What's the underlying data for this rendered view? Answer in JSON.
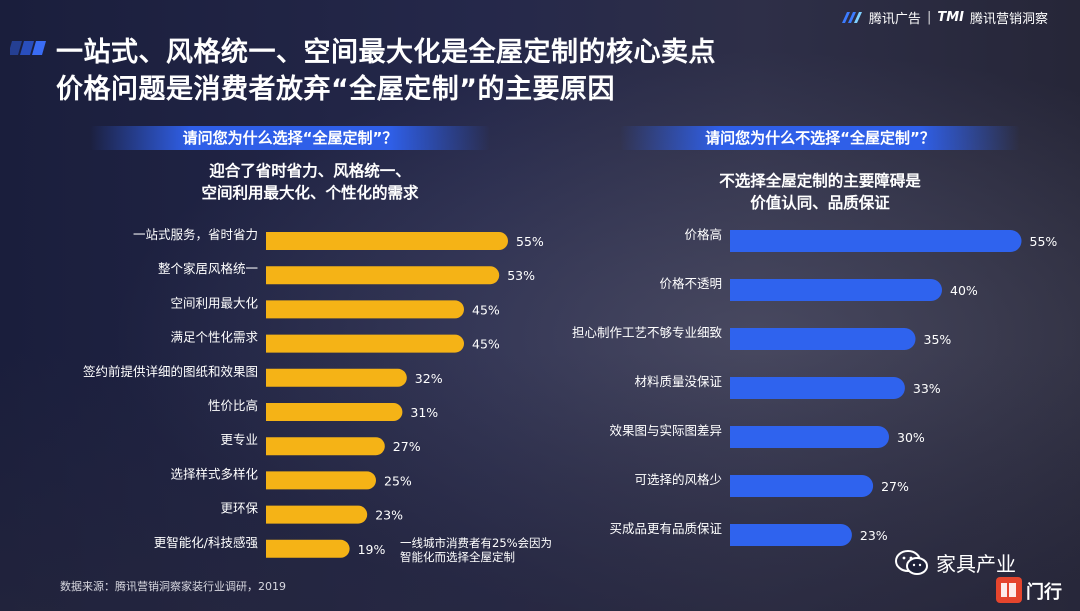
{
  "header": {
    "brand_left": "腾讯广告",
    "brand_sep": "|",
    "brand_tmi": "TMI",
    "brand_right": "腾讯营销洞察"
  },
  "title_line1": "一站式、风格统一、空间最大化是全屋定制的核心卖点",
  "title_line2": "价格问题是消费者放弃“全屋定制”的主要原因",
  "left_question": "请问您为什么选择“全屋定制”？",
  "left_sub_line1": "迎合了省时省力、风格统一、",
  "left_sub_line2": "空间利用最大化、个性化的需求",
  "right_question": "请问您为什么不选择“全屋定制”？",
  "right_sub_line1": "不选择全屋定制的主要障碍是",
  "right_sub_line2": "价值认同、品质保证",
  "note_line1": "一线城市消费者有25%会因为",
  "note_line2": "智能化而选择全屋定制",
  "source": "数据来源：腾讯营销洞察家装行业调研，2019",
  "watermark_text": "家具产业",
  "stamp_text": "门行",
  "colors": {
    "left_bar": "#f5b316",
    "right_bar": "#2f63ee",
    "background": "#1c2038"
  },
  "chart_data": [
    {
      "type": "bar",
      "orientation": "horizontal",
      "categories": [
        "一站式服务，省时省力",
        "整个家居风格统一",
        "空间利用最大化",
        "满足个性化需求",
        "签约前提供详细的图纸和效果图",
        "性价比高",
        "更专业",
        "选择样式多样化",
        "更环保",
        "更智能化/科技感强"
      ],
      "values": [
        55,
        53,
        45,
        45,
        32,
        31,
        27,
        25,
        23,
        19
      ],
      "value_labels": [
        "55%",
        "53%",
        "45%",
        "45%",
        "32%",
        "31%",
        "27%",
        "25%",
        "23%",
        "19%"
      ],
      "unit": "%"
    },
    {
      "type": "bar",
      "orientation": "horizontal",
      "categories": [
        "价格高",
        "价格不透明",
        "担心制作工艺不够专业细致",
        "材料质量没保证",
        "效果图与实际图差异",
        "可选择的风格少",
        "买成品更有品质保证"
      ],
      "values": [
        55,
        40,
        35,
        33,
        30,
        27,
        23
      ],
      "value_labels": [
        "55%",
        "40%",
        "35%",
        "33%",
        "30%",
        "27%",
        "23%"
      ],
      "unit": "%"
    }
  ]
}
